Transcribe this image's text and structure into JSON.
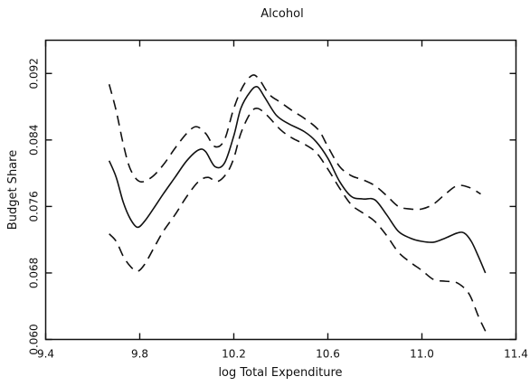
{
  "chart_data": {
    "type": "line",
    "title": "Alcohol",
    "xlabel": "log Total Expenditure",
    "ylabel": "Budget Share",
    "xlim": [
      9.4,
      11.4
    ],
    "ylim": [
      0.06,
      0.096
    ],
    "x_ticks": [
      9.4,
      9.8,
      10.2,
      10.6,
      11.0,
      11.4
    ],
    "x_tick_labels": [
      "9.4",
      "9.8",
      "10.2",
      "10.6",
      "11.0",
      "11.4"
    ],
    "y_ticks": [
      0.06,
      0.068,
      0.076,
      0.084,
      0.092
    ],
    "y_tick_labels": [
      "0.060",
      "0.068",
      "0.076",
      "0.084",
      "0.092"
    ],
    "grid": false,
    "series": [
      {
        "style": "solid",
        "points": [
          [
            9.67,
            0.0815
          ],
          [
            9.7,
            0.0795
          ],
          [
            9.73,
            0.0765
          ],
          [
            9.76,
            0.0745
          ],
          [
            9.79,
            0.0735
          ],
          [
            9.82,
            0.0742
          ],
          [
            9.86,
            0.0758
          ],
          [
            9.9,
            0.0775
          ],
          [
            9.95,
            0.0795
          ],
          [
            10.0,
            0.0815
          ],
          [
            10.05,
            0.0828
          ],
          [
            10.08,
            0.0826
          ],
          [
            10.12,
            0.0808
          ],
          [
            10.16,
            0.0812
          ],
          [
            10.2,
            0.0845
          ],
          [
            10.23,
            0.0878
          ],
          [
            10.27,
            0.0898
          ],
          [
            10.3,
            0.0904
          ],
          [
            10.33,
            0.0892
          ],
          [
            10.38,
            0.087
          ],
          [
            10.43,
            0.086
          ],
          [
            10.5,
            0.085
          ],
          [
            10.55,
            0.0838
          ],
          [
            10.6,
            0.0818
          ],
          [
            10.65,
            0.079
          ],
          [
            10.7,
            0.0772
          ],
          [
            10.75,
            0.0769
          ],
          [
            10.8,
            0.0768
          ],
          [
            10.85,
            0.075
          ],
          [
            10.9,
            0.073
          ],
          [
            10.95,
            0.0722
          ],
          [
            11.0,
            0.0718
          ],
          [
            11.05,
            0.0717
          ],
          [
            11.1,
            0.0722
          ],
          [
            11.15,
            0.0728
          ],
          [
            11.18,
            0.0728
          ],
          [
            11.21,
            0.0718
          ],
          [
            11.24,
            0.07
          ],
          [
            11.27,
            0.068
          ]
        ]
      },
      {
        "style": "dashed",
        "points": [
          [
            9.67,
            0.0907
          ],
          [
            9.7,
            0.0875
          ],
          [
            9.73,
            0.0835
          ],
          [
            9.76,
            0.0805
          ],
          [
            9.8,
            0.079
          ],
          [
            9.85,
            0.0795
          ],
          [
            9.9,
            0.081
          ],
          [
            9.95,
            0.083
          ],
          [
            10.0,
            0.0848
          ],
          [
            10.04,
            0.0856
          ],
          [
            10.08,
            0.0848
          ],
          [
            10.12,
            0.0832
          ],
          [
            10.16,
            0.084
          ],
          [
            10.2,
            0.0878
          ],
          [
            10.24,
            0.0905
          ],
          [
            10.28,
            0.0918
          ],
          [
            10.31,
            0.0912
          ],
          [
            10.35,
            0.0895
          ],
          [
            10.4,
            0.0885
          ],
          [
            10.45,
            0.0875
          ],
          [
            10.5,
            0.0866
          ],
          [
            10.56,
            0.0852
          ],
          [
            10.6,
            0.0832
          ],
          [
            10.65,
            0.0808
          ],
          [
            10.7,
            0.0797
          ],
          [
            10.75,
            0.0792
          ],
          [
            10.8,
            0.0785
          ],
          [
            10.85,
            0.0773
          ],
          [
            10.9,
            0.076
          ],
          [
            10.95,
            0.0757
          ],
          [
            11.0,
            0.0757
          ],
          [
            11.05,
            0.0763
          ],
          [
            11.1,
            0.0775
          ],
          [
            11.15,
            0.0785
          ],
          [
            11.2,
            0.0783
          ],
          [
            11.25,
            0.0775
          ]
        ]
      },
      {
        "style": "dashed",
        "points": [
          [
            9.67,
            0.0727
          ],
          [
            9.7,
            0.0718
          ],
          [
            9.73,
            0.07
          ],
          [
            9.76,
            0.0688
          ],
          [
            9.79,
            0.0682
          ],
          [
            9.82,
            0.069
          ],
          [
            9.86,
            0.071
          ],
          [
            9.9,
            0.073
          ],
          [
            9.95,
            0.075
          ],
          [
            10.0,
            0.0772
          ],
          [
            10.05,
            0.079
          ],
          [
            10.09,
            0.0795
          ],
          [
            10.13,
            0.079
          ],
          [
            10.17,
            0.08
          ],
          [
            10.2,
            0.0818
          ],
          [
            10.23,
            0.0848
          ],
          [
            10.27,
            0.0872
          ],
          [
            10.3,
            0.0878
          ],
          [
            10.34,
            0.087
          ],
          [
            10.4,
            0.0852
          ],
          [
            10.45,
            0.0842
          ],
          [
            10.5,
            0.0835
          ],
          [
            10.55,
            0.0825
          ],
          [
            10.6,
            0.0805
          ],
          [
            10.65,
            0.0782
          ],
          [
            10.7,
            0.0762
          ],
          [
            10.75,
            0.0752
          ],
          [
            10.8,
            0.0742
          ],
          [
            10.85,
            0.0725
          ],
          [
            10.9,
            0.0705
          ],
          [
            10.95,
            0.0693
          ],
          [
            11.0,
            0.0683
          ],
          [
            11.05,
            0.0672
          ],
          [
            11.1,
            0.067
          ],
          [
            11.15,
            0.0668
          ],
          [
            11.2,
            0.0655
          ],
          [
            11.24,
            0.0628
          ],
          [
            11.27,
            0.061
          ]
        ]
      }
    ]
  }
}
